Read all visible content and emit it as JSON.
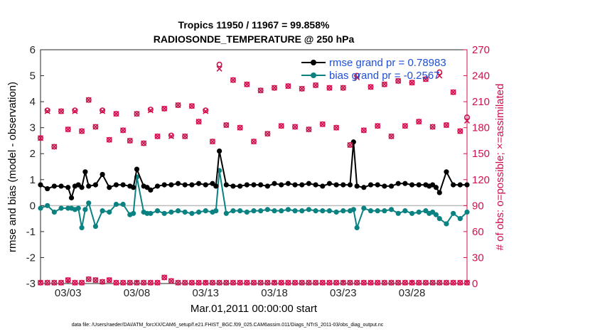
{
  "chart_data": {
    "type": "line",
    "title": "Tropics 11950 / 11967 = 99.858%",
    "subtitle": "RADIOSONDE_TEMPERATURE @ 250 hPa",
    "xlabel": "Mar.01,2011 00:00:00 start",
    "ylabel": "rmse and bias (model - observation)",
    "ylabel_right": "# of obs: o=possible; ×=assimilated",
    "xlim": [
      0,
      31
    ],
    "ylim": [
      -3,
      6
    ],
    "ylim_right": [
      0,
      270
    ],
    "x_tick_values": [
      2,
      7,
      12,
      17,
      22,
      27
    ],
    "x_tick_labels": [
      "03/03",
      "03/08",
      "03/13",
      "03/18",
      "03/23",
      "03/28"
    ],
    "y_ticks": [
      "-3",
      "-2",
      "-1",
      "0",
      "1",
      "2",
      "3",
      "4",
      "5",
      "6"
    ],
    "y_ticks_right": [
      "0",
      "30",
      "60",
      "90",
      "120",
      "150",
      "180",
      "210",
      "240",
      "270"
    ],
    "legend_position": "top-right",
    "colors": {
      "rmse": "#000000",
      "bias": "#0b8282",
      "obs": "#d0104c",
      "zero_line": "#bbbbbb"
    },
    "series": [
      {
        "name": "rmse grand pr = 0.78983",
        "axis": "left",
        "x": [
          0,
          0.5,
          1,
          1.5,
          2,
          2.25,
          2.5,
          2.75,
          3,
          3.25,
          3.5,
          4,
          4.5,
          5,
          5.5,
          6,
          6.5,
          6.75,
          7,
          7.5,
          7.75,
          8,
          8.5,
          9,
          9.5,
          10,
          10.5,
          11,
          11.5,
          12,
          12.5,
          12.75,
          13,
          13.5,
          14,
          14.5,
          15,
          15.5,
          16,
          16.5,
          17,
          17.5,
          18,
          18.5,
          19,
          19.5,
          20,
          20.5,
          21,
          21.5,
          22,
          22.5,
          22.75,
          23,
          23.5,
          24,
          24.5,
          25,
          25.5,
          26,
          26.5,
          27,
          27.5,
          28,
          28.25,
          28.5,
          28.75,
          29,
          29.5,
          30,
          30.5,
          31
        ],
        "values": [
          0.8,
          0.65,
          0.75,
          0.75,
          0.7,
          0.3,
          0.75,
          0.8,
          0.7,
          1.3,
          0.75,
          0.8,
          1.2,
          0.7,
          0.8,
          0.8,
          0.75,
          0.7,
          1.4,
          0.75,
          0.7,
          0.6,
          0.75,
          0.8,
          0.8,
          0.85,
          0.8,
          0.8,
          0.85,
          0.8,
          0.85,
          0.75,
          2.1,
          0.8,
          0.75,
          0.75,
          0.8,
          0.8,
          0.8,
          0.75,
          0.85,
          0.8,
          0.85,
          0.8,
          0.8,
          0.85,
          0.8,
          0.75,
          0.85,
          0.8,
          0.8,
          0.8,
          2.45,
          0.75,
          0.7,
          0.8,
          0.8,
          0.75,
          0.75,
          0.85,
          0.85,
          0.8,
          0.8,
          0.8,
          0.75,
          0.8,
          0.7,
          0.5,
          1.3,
          0.8,
          0.8,
          0.8
        ]
      },
      {
        "name": "bias grand pr = -0.2567",
        "axis": "left",
        "x": [
          0,
          0.5,
          1,
          1.5,
          2,
          2.25,
          2.5,
          2.75,
          3,
          3.25,
          3.5,
          4,
          4.5,
          5,
          5.5,
          6,
          6.5,
          6.75,
          7,
          7.5,
          7.75,
          8,
          8.5,
          9,
          9.5,
          10,
          10.5,
          11,
          11.5,
          12,
          12.5,
          12.75,
          13,
          13.5,
          14,
          14.5,
          15,
          15.5,
          16,
          16.5,
          17,
          17.5,
          18,
          18.5,
          19,
          19.5,
          20,
          20.5,
          21,
          21.5,
          22,
          22.5,
          22.75,
          23,
          23.5,
          24,
          24.5,
          25,
          25.5,
          26,
          26.5,
          27,
          27.5,
          28,
          28.25,
          28.5,
          28.75,
          29,
          29.5,
          30,
          30.5,
          31
        ],
        "values": [
          -0.1,
          0.0,
          -0.25,
          -0.1,
          -0.1,
          -0.1,
          -0.15,
          -0.1,
          -0.85,
          -0.15,
          0.1,
          -0.8,
          -0.2,
          -0.25,
          0.05,
          0.05,
          -0.35,
          -0.3,
          1.1,
          -0.25,
          -0.3,
          -0.3,
          -0.2,
          -0.3,
          -0.25,
          -0.2,
          -0.25,
          -0.3,
          -0.25,
          -0.2,
          -0.25,
          -0.2,
          1.35,
          -0.3,
          -0.2,
          -0.2,
          -0.25,
          -0.2,
          -0.2,
          -0.15,
          -0.2,
          -0.2,
          -0.15,
          -0.2,
          -0.2,
          -0.15,
          -0.2,
          -0.2,
          -0.2,
          -0.25,
          -0.2,
          -0.2,
          -0.15,
          -0.85,
          -0.1,
          -0.2,
          -0.2,
          -0.2,
          -0.15,
          -0.3,
          -0.2,
          -0.3,
          -0.25,
          -0.2,
          -0.3,
          -0.25,
          -0.35,
          -0.5,
          -0.7,
          -0.3,
          -0.5,
          -0.25
        ]
      },
      {
        "name": "possible",
        "axis": "right",
        "marker": "o",
        "x": [
          0,
          0.5,
          1,
          1.5,
          2,
          2.5,
          3,
          3.5,
          4,
          4.5,
          5,
          5.5,
          6,
          6.5,
          7,
          7.5,
          8,
          8.5,
          9,
          9.5,
          10,
          10.5,
          11,
          11.5,
          12,
          12.5,
          13,
          13.5,
          14,
          14.5,
          15,
          15.5,
          16,
          16.5,
          17,
          17.5,
          18,
          18.5,
          19,
          19.5,
          20,
          20.5,
          21,
          21.5,
          22,
          22.5,
          23,
          23.5,
          24,
          24.5,
          25,
          25.5,
          26,
          26.5,
          27,
          27.5,
          28,
          28.5,
          29,
          29.5,
          30,
          30.5,
          31
        ],
        "values": [
          168,
          200,
          158,
          199,
          178,
          200,
          176,
          212,
          181,
          200,
          166,
          196,
          177,
          165,
          196,
          162,
          201,
          170,
          202,
          171,
          206,
          170,
          205,
          187,
          200,
          164,
          253,
          183,
          235,
          180,
          230,
          164,
          223,
          173,
          226,
          182,
          228,
          181,
          225,
          178,
          229,
          184,
          226,
          180,
          226,
          160,
          240,
          177,
          227,
          182,
          230,
          170,
          234,
          182,
          232,
          187,
          236,
          181,
          244,
          183,
          221,
          176,
          192
        ],
        "assimilated": [
          168,
          199,
          158,
          199,
          178,
          199,
          176,
          212,
          181,
          199,
          166,
          196,
          177,
          165,
          196,
          162,
          200,
          170,
          202,
          170,
          206,
          170,
          205,
          187,
          199,
          164,
          248,
          183,
          235,
          180,
          230,
          164,
          223,
          173,
          226,
          182,
          228,
          181,
          225,
          178,
          229,
          184,
          226,
          180,
          226,
          160,
          238,
          177,
          227,
          182,
          230,
          170,
          234,
          182,
          232,
          187,
          236,
          181,
          240,
          183,
          221,
          176,
          188
        ]
      },
      {
        "name": "assimilated-zero-baseline",
        "axis": "right",
        "x": [
          0,
          0.5,
          1,
          1.5,
          2,
          2.5,
          3,
          3.5,
          4,
          4.5,
          5,
          5.5,
          6,
          6.5,
          7,
          7.5,
          8,
          8.5,
          9,
          9.5,
          10,
          10.5,
          11,
          11.5,
          12,
          12.5,
          13,
          13.5,
          14,
          14.5,
          15,
          15.5,
          16,
          16.5,
          17,
          17.5,
          18,
          18.5,
          19,
          19.5,
          20,
          20.5,
          21,
          21.5,
          22,
          22.5,
          23,
          23.5,
          24,
          24.5,
          25,
          25.5,
          26,
          26.5,
          27,
          27.5,
          28,
          28.5,
          29,
          29.5,
          30,
          30.5,
          31
        ],
        "values": [
          1,
          1,
          1,
          1,
          4,
          1,
          1,
          5,
          4,
          2,
          4,
          1,
          1,
          1,
          1,
          1,
          1,
          1,
          7,
          3,
          1,
          1,
          1,
          1,
          1,
          1,
          1,
          1,
          1,
          1,
          1,
          1,
          1,
          1,
          1,
          1,
          1,
          1,
          1,
          1,
          1,
          1,
          1,
          1,
          1,
          1,
          1,
          1,
          1,
          1,
          1,
          1,
          1,
          1,
          1,
          1,
          1,
          1,
          1,
          1,
          1,
          1,
          1
        ]
      }
    ]
  },
  "footer": {
    "datafile": "data file: /Users/raeder/DAI/ATM_forcXX/CAM6_setup/f.e21.FHIST_BGC.f09_025.CAM6assim.011/Diags_NTrS_2011-03/obs_diag_output.nc"
  }
}
